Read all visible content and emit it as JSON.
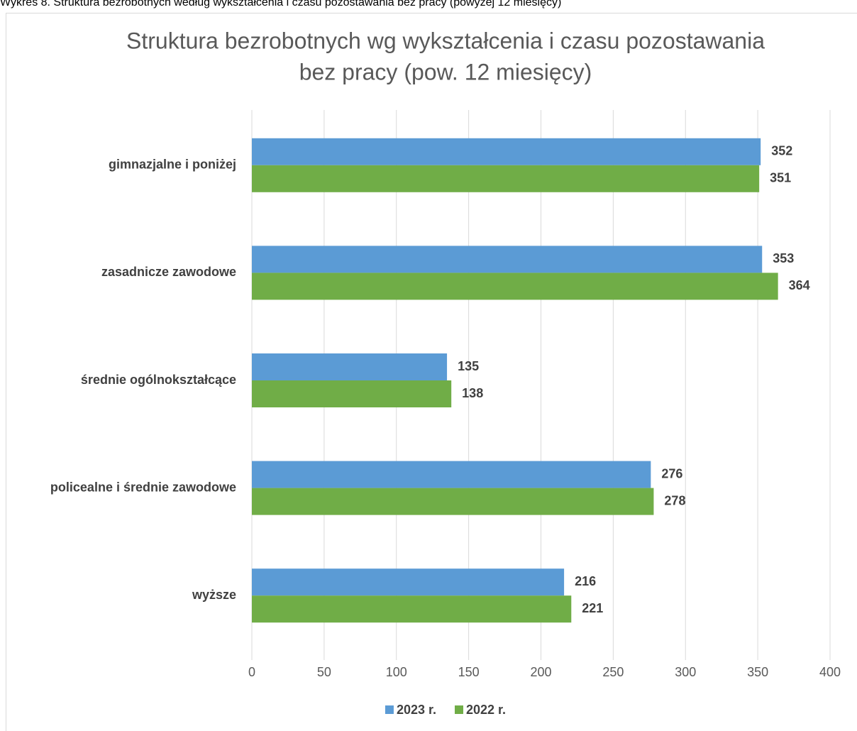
{
  "caption": "Wykres 8. Struktura bezrobotnych według wykształcenia i czasu pozostawania bez pracy (powyżej 12 miesięcy)",
  "chart_data": {
    "type": "bar",
    "orientation": "horizontal",
    "title": [
      "Struktura bezrobotnych wg wykształcenia i czasu pozostawania",
      "bez pracy (pow. 12 miesięcy)"
    ],
    "categories": [
      "gimnazjalne i poniżej",
      "zasadnicze zawodowe",
      "średnie ogólnokształcące",
      "policealne i średnie zawodowe",
      "wyższe"
    ],
    "series": [
      {
        "name": "2023 r.",
        "color": "#5b9bd5",
        "values": [
          352,
          353,
          135,
          276,
          216
        ]
      },
      {
        "name": "2022 r.",
        "color": "#70ad47",
        "values": [
          351,
          364,
          138,
          278,
          221
        ]
      }
    ],
    "xlim": [
      0,
      400
    ],
    "xticks": [
      0,
      50,
      100,
      150,
      200,
      250,
      300,
      350,
      400
    ],
    "grid": true,
    "legend": "bottom"
  }
}
